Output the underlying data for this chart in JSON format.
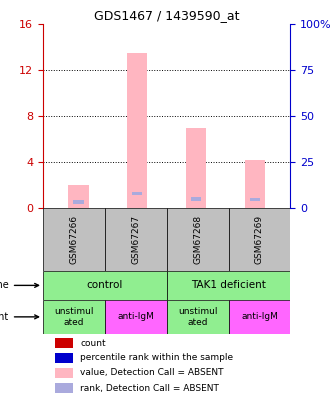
{
  "title": "GDS1467 / 1439590_at",
  "samples": [
    "GSM67266",
    "GSM67267",
    "GSM67268",
    "GSM67269"
  ],
  "left_ylim": [
    0,
    16
  ],
  "right_ylim": [
    0,
    100
  ],
  "left_yticks": [
    0,
    4,
    8,
    12,
    16
  ],
  "right_yticks": [
    0,
    25,
    50,
    75,
    100
  ],
  "right_yticklabels": [
    "0",
    "25",
    "50",
    "75",
    "100%"
  ],
  "pink_bars": [
    2.0,
    13.5,
    7.0,
    4.2
  ],
  "blue_markers": [
    3.2,
    7.8,
    5.0,
    4.5
  ],
  "pink_bar_color": "#FFB6C1",
  "blue_marker_color": "#AAAADD",
  "cell_line_labels": [
    [
      "control",
      2
    ],
    [
      "TAK1 deficient",
      2
    ]
  ],
  "cell_line_color": "#90EE90",
  "agent_labels": [
    "unstimul\nated",
    "anti-IgM",
    "unstimul\nated",
    "anti-IgM"
  ],
  "agent_colors": [
    "#90EE90",
    "#FF66FF",
    "#90EE90",
    "#FF66FF"
  ],
  "legend_items": [
    {
      "color": "#CC0000",
      "label": "count"
    },
    {
      "color": "#0000CC",
      "label": "percentile rank within the sample"
    },
    {
      "color": "#FFB6C1",
      "label": "value, Detection Call = ABSENT"
    },
    {
      "color": "#AAAADD",
      "label": "rank, Detection Call = ABSENT"
    }
  ],
  "grid_color": "#000000",
  "dotted_line_color": "#555555",
  "sample_box_color": "#C0C0C0",
  "left_tick_color": "#CC0000",
  "right_tick_color": "#0000CC"
}
